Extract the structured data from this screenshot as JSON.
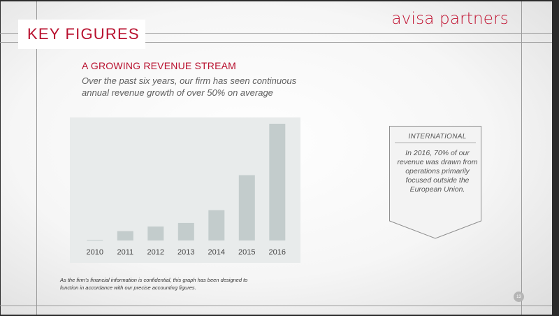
{
  "header": {
    "title": "KEY FIGURES",
    "brand": "avisa partners"
  },
  "main": {
    "subtitle": "A GROWING REVENUE STREAM",
    "description": "Over the past six years, our firm has seen continuous annual revenue growth of over 50% on average",
    "footnote": "As the firm’s financial information is confidential, this graph has been designed to function in accordance with our precise accounting figures."
  },
  "callout": {
    "heading": "INTERNATIONAL",
    "body": "In 2016, 70% of our revenue was drawn from operations primarily focused outside the European Union."
  },
  "page_number": "13",
  "colors": {
    "accent": "#b8102e",
    "bar": "#c3cccc",
    "plot_bg": "#e8ebeb"
  },
  "chart_data": {
    "type": "bar",
    "categories": [
      "2010",
      "2011",
      "2012",
      "2013",
      "2014",
      "2015",
      "2016"
    ],
    "values": [
      0.5,
      8,
      12,
      15,
      26,
      56,
      100
    ],
    "title": "",
    "xlabel": "",
    "ylabel": "",
    "ylim": [
      0,
      100
    ],
    "grid": false,
    "legend": "none"
  }
}
